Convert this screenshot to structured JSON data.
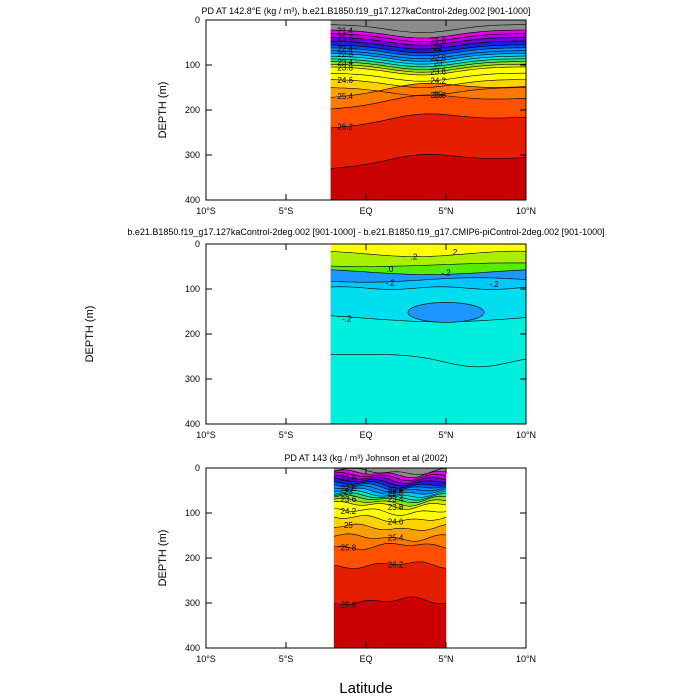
{
  "figure": {
    "xlabel": "Latitude"
  },
  "colors": {
    "density_scale": [
      "#8c8c8c",
      "#e600e6",
      "#b400dc",
      "#6e00dc",
      "#1e1ed2",
      "#0050f0",
      "#008cff",
      "#00c8ff",
      "#00e6d2",
      "#3cdc78",
      "#8cdc28",
      "#d2e600",
      "#ffff00",
      "#ffd200",
      "#ffa000",
      "#ff7800",
      "#ff5000",
      "#e61e00",
      "#c80000"
    ],
    "diff_scale": [
      "#00eedd",
      "#00ddee",
      "#00c8ff",
      "#1e96ff",
      "#ffff00",
      "#aaee00",
      "#55ee00"
    ]
  },
  "chart_data": [
    {
      "type": "contour",
      "title": "PD AT 142.8°E (kg / m³), b.e21.B1850.f19_g17.127kaControl-2deg.002 [901-1000]",
      "ylabel": "DEPTH (m)",
      "x_ticks": [
        "10°S",
        "5°S",
        "EQ",
        "5°N",
        "10°N"
      ],
      "y_ticks": [
        "0",
        "100",
        "200",
        "300",
        "400"
      ],
      "xlim": [
        -10,
        10
      ],
      "ylim": [
        400,
        0
      ],
      "data_lon_range": [
        -2.2,
        10
      ],
      "contour_levels": [
        21.0,
        21.4,
        21.6,
        21.8,
        22.0,
        22.2,
        22.4,
        22.6,
        22.8,
        23.0,
        23.2,
        23.4,
        23.6,
        23.8,
        24.2,
        24.6,
        25.0,
        25.4,
        25.8,
        26.2,
        26.6
      ],
      "contour_labels": [
        "21.4",
        "21.6",
        "21.8",
        "22",
        "22.4",
        "22.6",
        "22.8",
        "23",
        "23.4",
        "23.6",
        "23.8",
        "24.2",
        "24.6",
        "25",
        "25.4",
        "25.8",
        "26.2"
      ]
    },
    {
      "type": "contour",
      "title": "b.e21.B1850.f19_g17.127kaControl-2deg.002 [901-1000] - b.e21.B1850.f19_g17.CMIP6-piControl-2deg.002 [901-1000]",
      "ylabel": "DEPTH (m)",
      "x_ticks": [
        "10°S",
        "5°S",
        "EQ",
        "5°N",
        "10°N"
      ],
      "y_ticks": [
        "0",
        "100",
        "200",
        "300",
        "400"
      ],
      "xlim": [
        -10,
        10
      ],
      "ylim": [
        400,
        0
      ],
      "data_lon_range": [
        -2.2,
        10
      ],
      "contour_levels": [
        -0.4,
        -0.2,
        0,
        0.2
      ],
      "contour_labels": [
        ".2",
        ".2",
        ".0",
        "-.2",
        "-.2",
        "-.2",
        "-.2"
      ]
    },
    {
      "type": "contour",
      "title": "PD AT 143 (kg / m³) Johnson et al (2002)",
      "ylabel": "DEPTH (m)",
      "x_ticks": [
        "10°S",
        "5°S",
        "EQ",
        "5°N",
        "10°N"
      ],
      "y_ticks": [
        "0",
        "100",
        "200",
        "300",
        "400"
      ],
      "xlim": [
        -10,
        10
      ],
      "ylim": [
        400,
        0
      ],
      "data_lon_range": [
        -2,
        5
      ],
      "contour_levels": [
        21.0,
        21.4,
        21.6,
        21.8,
        22.0,
        22.2,
        22.4,
        22.6,
        22.8,
        23.0,
        23.2,
        23.4,
        23.6,
        23.8,
        24.2,
        24.6,
        25.0,
        25.4,
        25.8,
        26.2,
        26.6
      ],
      "contour_labels": [
        "21.8",
        "22.4",
        "22.6",
        "22.8",
        "23",
        "23.4",
        "23.6",
        "23.8",
        "24.2",
        "24.6",
        "25",
        "25.4",
        "25.8",
        "26.2",
        "26.6"
      ]
    }
  ]
}
